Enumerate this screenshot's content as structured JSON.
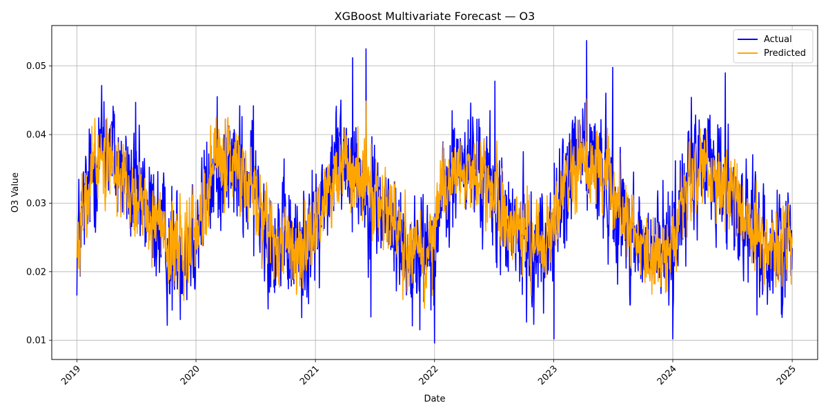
{
  "chart_data": {
    "type": "line",
    "title": "XGBoost Multivariate Forecast — O3",
    "xlabel": "Date",
    "ylabel": "O3 Value",
    "xlim": [
      "2018-10-16",
      "2025-03-20"
    ],
    "ylim": [
      0.0072,
      0.0559
    ],
    "x_ticks": [
      "2019-01-01",
      "2020-01-01",
      "2021-01-01",
      "2022-01-01",
      "2023-01-01",
      "2024-01-01",
      "2025-01-01"
    ],
    "x_tick_labels": [
      "2019",
      "2020",
      "2021",
      "2022",
      "2023",
      "2024",
      "2025"
    ],
    "y_ticks": [
      0.01,
      0.02,
      0.03,
      0.04,
      0.05
    ],
    "y_tick_labels": [
      "0.01",
      "0.02",
      "0.03",
      "0.04",
      "0.05"
    ],
    "x_start": "2019-01-01",
    "x_end": "2025-01-01",
    "grid": true,
    "legend_position": "top-right",
    "series": [
      {
        "name": "Actual",
        "color": "#0000ff",
        "monthly_mean": [
          0.024,
          0.031,
          0.037,
          0.039,
          0.036,
          0.033,
          0.031,
          0.029,
          0.027,
          0.024,
          0.023,
          0.024,
          0.026,
          0.031,
          0.035,
          0.036,
          0.035,
          0.033,
          0.031,
          0.027,
          0.025,
          0.024,
          0.023,
          0.024,
          0.026,
          0.031,
          0.036,
          0.037,
          0.035,
          0.033,
          0.031,
          0.028,
          0.026,
          0.024,
          0.022,
          0.023,
          0.026,
          0.031,
          0.034,
          0.036,
          0.035,
          0.033,
          0.031,
          0.028,
          0.025,
          0.024,
          0.023,
          0.024,
          0.027,
          0.031,
          0.036,
          0.038,
          0.036,
          0.034,
          0.031,
          0.028,
          0.026,
          0.023,
          0.022,
          0.023,
          0.025,
          0.03,
          0.034,
          0.036,
          0.035,
          0.033,
          0.031,
          0.028,
          0.026,
          0.024,
          0.023,
          0.024
        ],
        "extremes": [
          {
            "date": "2019-03-25",
            "value": 0.0448
          },
          {
            "date": "2019-06-30",
            "value": 0.0447
          },
          {
            "date": "2019-10-20",
            "value": 0.0144
          },
          {
            "date": "2020-06-25",
            "value": 0.0442
          },
          {
            "date": "2020-11-20",
            "value": 0.0133
          },
          {
            "date": "2021-04-25",
            "value": 0.0512
          },
          {
            "date": "2021-06-05",
            "value": 0.0525
          },
          {
            "date": "2021-06-20",
            "value": 0.0134
          },
          {
            "date": "2021-10-25",
            "value": 0.0121
          },
          {
            "date": "2022-01-01",
            "value": 0.0096
          },
          {
            "date": "2022-07-05",
            "value": 0.0478
          },
          {
            "date": "2023-01-02",
            "value": 0.0102
          },
          {
            "date": "2023-04-12",
            "value": 0.0537
          },
          {
            "date": "2023-07-01",
            "value": 0.0498
          },
          {
            "date": "2024-01-01",
            "value": 0.0102
          },
          {
            "date": "2024-06-10",
            "value": 0.049
          },
          {
            "date": "2024-09-15",
            "value": 0.0137
          }
        ]
      },
      {
        "name": "Predicted",
        "color": "#ffa500",
        "monthly_mean": [
          0.024,
          0.031,
          0.036,
          0.037,
          0.035,
          0.033,
          0.031,
          0.029,
          0.027,
          0.024,
          0.024,
          0.024,
          0.026,
          0.031,
          0.035,
          0.036,
          0.035,
          0.033,
          0.031,
          0.028,
          0.025,
          0.024,
          0.023,
          0.024,
          0.026,
          0.031,
          0.035,
          0.036,
          0.035,
          0.033,
          0.031,
          0.028,
          0.026,
          0.024,
          0.023,
          0.023,
          0.026,
          0.031,
          0.034,
          0.035,
          0.034,
          0.033,
          0.031,
          0.028,
          0.025,
          0.024,
          0.023,
          0.024,
          0.027,
          0.031,
          0.035,
          0.037,
          0.036,
          0.034,
          0.031,
          0.028,
          0.026,
          0.023,
          0.022,
          0.023,
          0.025,
          0.03,
          0.033,
          0.035,
          0.034,
          0.033,
          0.031,
          0.028,
          0.026,
          0.024,
          0.023,
          0.024
        ],
        "extremes": [
          {
            "date": "2021-06-05",
            "value": 0.0449
          },
          {
            "date": "2023-04-10",
            "value": 0.0452
          },
          {
            "date": "2019-11-25",
            "value": 0.0158
          },
          {
            "date": "2021-12-25",
            "value": 0.0165
          }
        ]
      }
    ]
  }
}
